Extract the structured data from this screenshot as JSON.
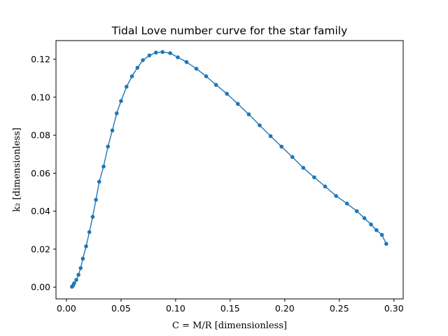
{
  "chart_data": {
    "type": "line",
    "title": "Tidal Love number curve for the star family",
    "xlabel": "C = M/R [dimensionless]",
    "ylabel": "k₂ [dimensionless]",
    "xlim": [
      -0.0096,
      0.3085
    ],
    "ylim": [
      -0.0062,
      0.1298
    ],
    "x_ticks": [
      0.0,
      0.05,
      0.1,
      0.15,
      0.2,
      0.25,
      0.3
    ],
    "x_tick_labels": [
      "0.00",
      "0.05",
      "0.10",
      "0.15",
      "0.20",
      "0.25",
      "0.30"
    ],
    "y_ticks": [
      0.0,
      0.02,
      0.04,
      0.06,
      0.08,
      0.1,
      0.12
    ],
    "y_tick_labels": [
      "0.00",
      "0.02",
      "0.04",
      "0.06",
      "0.08",
      "0.10",
      "0.12"
    ],
    "grid": false,
    "legend": "none",
    "series": [
      {
        "color": "#1f77b4",
        "marker": "circle",
        "x": [
          0.005,
          0.006,
          0.007,
          0.009,
          0.011,
          0.013,
          0.015,
          0.018,
          0.021,
          0.024,
          0.027,
          0.03,
          0.034,
          0.038,
          0.042,
          0.046,
          0.05,
          0.055,
          0.06,
          0.065,
          0.07,
          0.076,
          0.082,
          0.088,
          0.095,
          0.102,
          0.11,
          0.119,
          0.128,
          0.137,
          0.147,
          0.157,
          0.167,
          0.177,
          0.187,
          0.197,
          0.207,
          0.217,
          0.227,
          0.237,
          0.247,
          0.257,
          0.266,
          0.273,
          0.279,
          0.284,
          0.289,
          0.293
        ],
        "y": [
          0.0002,
          0.0008,
          0.002,
          0.0038,
          0.0065,
          0.01,
          0.015,
          0.0215,
          0.029,
          0.037,
          0.046,
          0.0555,
          0.0635,
          0.074,
          0.0825,
          0.0915,
          0.098,
          0.1055,
          0.111,
          0.1155,
          0.1195,
          0.122,
          0.1235,
          0.1238,
          0.1232,
          0.121,
          0.1185,
          0.115,
          0.111,
          0.1065,
          0.1018,
          0.0965,
          0.091,
          0.0852,
          0.0795,
          0.074,
          0.0685,
          0.0628,
          0.0578,
          0.053,
          0.048,
          0.044,
          0.04,
          0.0363,
          0.033,
          0.03,
          0.0275,
          0.0228
        ]
      }
    ]
  }
}
